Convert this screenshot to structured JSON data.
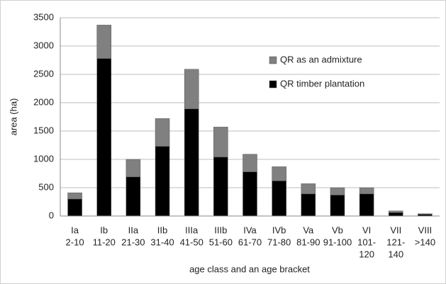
{
  "chart_data": {
    "type": "stacked-bar",
    "x_label": "age class and an age bracket",
    "y_label": "area (ha)",
    "categories": [
      [
        "Ia",
        "2-10"
      ],
      [
        "Ib",
        "11-20"
      ],
      [
        "IIa",
        "21-30"
      ],
      [
        "IIb",
        "31-40"
      ],
      [
        "IIIa",
        "41-50"
      ],
      [
        "IIIb",
        "51-60"
      ],
      [
        "IVa",
        "61-70"
      ],
      [
        "IVb",
        "71-80"
      ],
      [
        "Va",
        "81-90"
      ],
      [
        "Vb",
        "91-100"
      ],
      [
        "VI",
        "101-",
        "120"
      ],
      [
        "VII",
        "121-",
        "140"
      ],
      [
        "VIII",
        ">140"
      ]
    ],
    "series": [
      {
        "name": "QR timber plantation",
        "color": "#000000",
        "values": [
          300,
          2780,
          690,
          1230,
          1890,
          1040,
          780,
          620,
          390,
          370,
          390,
          60,
          30
        ]
      },
      {
        "name": "QR as an admixture",
        "color": "#808080",
        "values": [
          110,
          590,
          310,
          490,
          700,
          530,
          310,
          250,
          180,
          130,
          110,
          30,
          10
        ]
      }
    ],
    "ylim": [
      0,
      3500
    ],
    "yticks": [
      0,
      500,
      1000,
      1500,
      2000,
      2500,
      3000,
      3500
    ],
    "grid": true
  }
}
